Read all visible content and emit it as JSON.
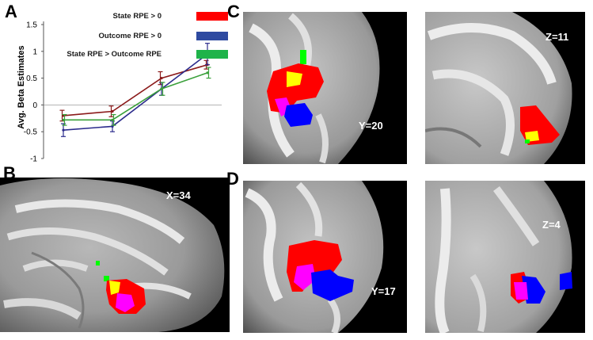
{
  "panels": {
    "a": "A",
    "b": "B",
    "c": "C",
    "d": "D"
  },
  "chart_data": {
    "type": "line",
    "x": [
      1,
      2,
      3,
      4
    ],
    "ylabel": "Avg. Beta Estimates",
    "ylim": [
      -1,
      1.5
    ],
    "yticks": [
      "1.5",
      "1",
      "0.5",
      "0",
      "-0.5",
      "-1"
    ],
    "series": [
      {
        "name": "State RPE > 0",
        "color": "#8b1a1a",
        "swatch": "#ff0000",
        "values": [
          -0.2,
          -0.12,
          0.5,
          0.75
        ],
        "err": [
          0.1,
          0.1,
          0.12,
          0.08
        ]
      },
      {
        "name": "Outcome RPE > 0",
        "color": "#2c2c8c",
        "swatch": "#2e4aa0",
        "values": [
          -0.47,
          -0.4,
          0.3,
          0.95
        ],
        "err": [
          0.12,
          0.1,
          0.12,
          0.2
        ]
      },
      {
        "name": "State RPE > Outcome RPE",
        "color": "#3aa03a",
        "swatch": "#1fb34a",
        "values": [
          -0.28,
          -0.28,
          0.3,
          0.6
        ],
        "err": [
          0.1,
          0.1,
          0.12,
          0.1
        ]
      }
    ]
  },
  "coords": {
    "b": "X=34",
    "c1": "Y=20",
    "c2": "Z=11",
    "d1": "Y=17",
    "d2": "Z=4"
  },
  "colors": {
    "state": "#ff0000",
    "outcome": "#0000ff",
    "overlap": "#ff00ff",
    "conj": "#ffff00",
    "diff": "#00ff00"
  }
}
